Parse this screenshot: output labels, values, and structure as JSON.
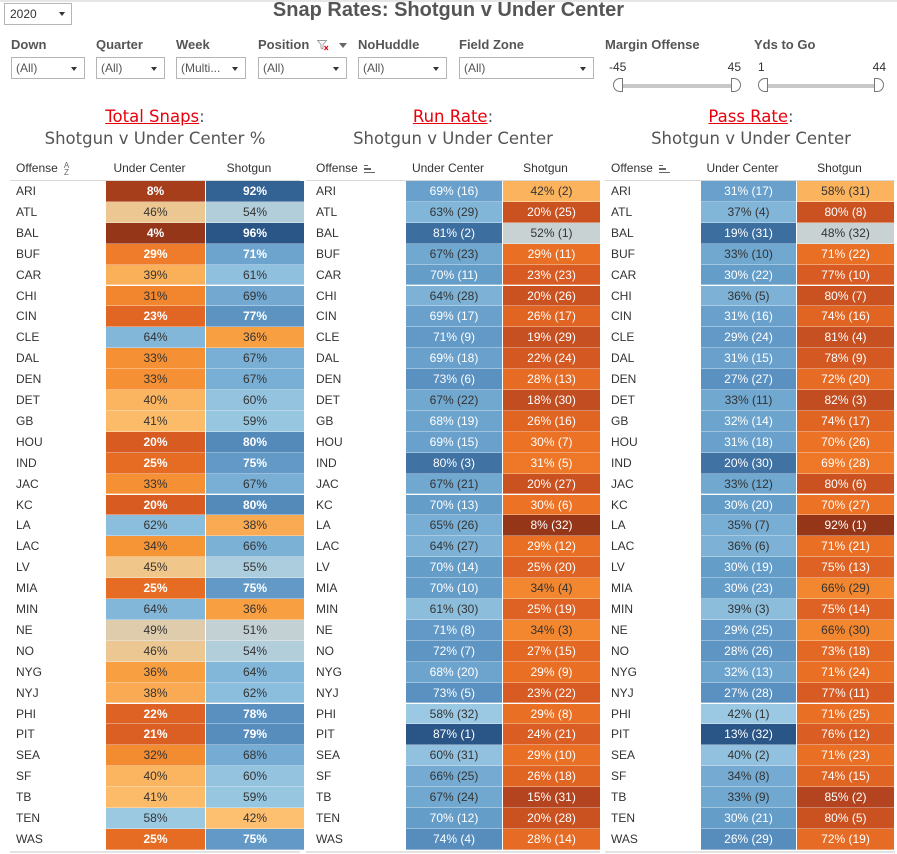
{
  "header": {
    "title": "Snap Rates: Shotgun v Under Center",
    "year": "2020"
  },
  "filters": [
    {
      "label": "Down",
      "value": "(All)"
    },
    {
      "label": "Quarter",
      "value": "(All)"
    },
    {
      "label": "Week",
      "value": "(Multi..."
    },
    {
      "label": "Position",
      "value": "(All)"
    },
    {
      "label": "NoHuddle",
      "value": "(All)"
    },
    {
      "label": "Field Zone",
      "value": "(All)"
    }
  ],
  "sliders": [
    {
      "label": "Margin Offense",
      "min": "-45",
      "max": "45"
    },
    {
      "label": "Yds to Go",
      "min": "1",
      "max": "44"
    }
  ],
  "colors": {
    "title_accent": "#e8000b",
    "orange_dark": "#9b3a1e",
    "orange_light": "#fdbf6f",
    "blue_dark": "#2c5d8f",
    "blue_light": "#a6cde6",
    "neutral": "#d8d2c2"
  },
  "sections": [
    {
      "title_accent": "Total Snaps",
      "title_rest": ":",
      "subtitle": "Shotgun v Under Center %",
      "col_offense": "Offense",
      "col_uc": "Under Center",
      "col_sg": "Shotgun",
      "sort": "alpha"
    },
    {
      "title_accent": "Run Rate",
      "title_rest": ":",
      "subtitle": "Shotgun v Under Center",
      "col_offense": "Offense",
      "col_uc": "Under Center",
      "col_sg": "Shotgun",
      "sort": "field"
    },
    {
      "title_accent": "Pass Rate",
      "title_rest": ":",
      "subtitle": "Shotgun v Under Center",
      "col_offense": "Offense",
      "col_uc": "Under Center",
      "col_sg": "Shotgun",
      "sort": "field"
    }
  ],
  "teams": [
    "ARI",
    "ATL",
    "BAL",
    "BUF",
    "CAR",
    "CHI",
    "CIN",
    "CLE",
    "DAL",
    "DEN",
    "DET",
    "GB",
    "HOU",
    "IND",
    "JAC",
    "KC",
    "LA",
    "LAC",
    "LV",
    "MIA",
    "MIN",
    "NE",
    "NO",
    "NYG",
    "NYJ",
    "PHI",
    "PIT",
    "SEA",
    "SF",
    "TB",
    "TEN",
    "WAS"
  ],
  "total_snaps": {
    "under_center": [
      8,
      46,
      4,
      29,
      39,
      31,
      23,
      64,
      33,
      33,
      40,
      41,
      20,
      25,
      33,
      20,
      62,
      34,
      45,
      25,
      64,
      49,
      46,
      36,
      38,
      22,
      21,
      32,
      40,
      41,
      58,
      25
    ],
    "shotgun": [
      92,
      54,
      96,
      71,
      61,
      69,
      77,
      36,
      67,
      67,
      60,
      59,
      80,
      75,
      67,
      80,
      38,
      66,
      55,
      75,
      36,
      51,
      54,
      64,
      62,
      78,
      79,
      68,
      60,
      59,
      42,
      75
    ]
  },
  "run_rate": {
    "under_center": [
      [
        69,
        16
      ],
      [
        63,
        29
      ],
      [
        81,
        2
      ],
      [
        67,
        23
      ],
      [
        70,
        11
      ],
      [
        64,
        28
      ],
      [
        69,
        17
      ],
      [
        71,
        9
      ],
      [
        69,
        18
      ],
      [
        73,
        6
      ],
      [
        67,
        22
      ],
      [
        68,
        19
      ],
      [
        69,
        15
      ],
      [
        80,
        3
      ],
      [
        67,
        21
      ],
      [
        70,
        13
      ],
      [
        65,
        26
      ],
      [
        64,
        27
      ],
      [
        70,
        14
      ],
      [
        70,
        10
      ],
      [
        61,
        30
      ],
      [
        71,
        8
      ],
      [
        72,
        7
      ],
      [
        68,
        20
      ],
      [
        73,
        5
      ],
      [
        58,
        32
      ],
      [
        87,
        1
      ],
      [
        60,
        31
      ],
      [
        66,
        25
      ],
      [
        67,
        24
      ],
      [
        70,
        12
      ],
      [
        74,
        4
      ]
    ],
    "shotgun": [
      [
        42,
        2
      ],
      [
        20,
        25
      ],
      [
        52,
        1
      ],
      [
        29,
        11
      ],
      [
        23,
        23
      ],
      [
        20,
        26
      ],
      [
        26,
        17
      ],
      [
        19,
        29
      ],
      [
        22,
        24
      ],
      [
        28,
        13
      ],
      [
        18,
        30
      ],
      [
        26,
        16
      ],
      [
        30,
        7
      ],
      [
        31,
        5
      ],
      [
        20,
        27
      ],
      [
        30,
        6
      ],
      [
        8,
        32
      ],
      [
        29,
        12
      ],
      [
        25,
        20
      ],
      [
        34,
        4
      ],
      [
        25,
        19
      ],
      [
        34,
        3
      ],
      [
        27,
        15
      ],
      [
        29,
        9
      ],
      [
        23,
        22
      ],
      [
        29,
        8
      ],
      [
        24,
        21
      ],
      [
        29,
        10
      ],
      [
        26,
        18
      ],
      [
        15,
        31
      ],
      [
        20,
        28
      ],
      [
        28,
        14
      ]
    ]
  },
  "pass_rate": {
    "under_center": [
      [
        31,
        17
      ],
      [
        37,
        4
      ],
      [
        19,
        31
      ],
      [
        33,
        10
      ],
      [
        30,
        22
      ],
      [
        36,
        5
      ],
      [
        31,
        16
      ],
      [
        29,
        24
      ],
      [
        31,
        15
      ],
      [
        27,
        27
      ],
      [
        33,
        11
      ],
      [
        32,
        14
      ],
      [
        31,
        18
      ],
      [
        20,
        30
      ],
      [
        33,
        12
      ],
      [
        30,
        20
      ],
      [
        35,
        7
      ],
      [
        36,
        6
      ],
      [
        30,
        19
      ],
      [
        30,
        23
      ],
      [
        39,
        3
      ],
      [
        29,
        25
      ],
      [
        28,
        26
      ],
      [
        32,
        13
      ],
      [
        27,
        28
      ],
      [
        42,
        1
      ],
      [
        13,
        32
      ],
      [
        40,
        2
      ],
      [
        34,
        8
      ],
      [
        33,
        9
      ],
      [
        30,
        21
      ],
      [
        26,
        29
      ]
    ],
    "shotgun": [
      [
        58,
        31
      ],
      [
        80,
        8
      ],
      [
        48,
        32
      ],
      [
        71,
        22
      ],
      [
        77,
        10
      ],
      [
        80,
        7
      ],
      [
        74,
        16
      ],
      [
        81,
        4
      ],
      [
        78,
        9
      ],
      [
        72,
        20
      ],
      [
        82,
        3
      ],
      [
        74,
        17
      ],
      [
        70,
        26
      ],
      [
        69,
        28
      ],
      [
        80,
        6
      ],
      [
        70,
        27
      ],
      [
        92,
        1
      ],
      [
        71,
        21
      ],
      [
        75,
        13
      ],
      [
        66,
        29
      ],
      [
        75,
        14
      ],
      [
        66,
        30
      ],
      [
        73,
        18
      ],
      [
        71,
        24
      ],
      [
        77,
        11
      ],
      [
        71,
        25
      ],
      [
        76,
        12
      ],
      [
        71,
        23
      ],
      [
        74,
        15
      ],
      [
        85,
        2
      ],
      [
        80,
        5
      ],
      [
        72,
        19
      ]
    ]
  }
}
